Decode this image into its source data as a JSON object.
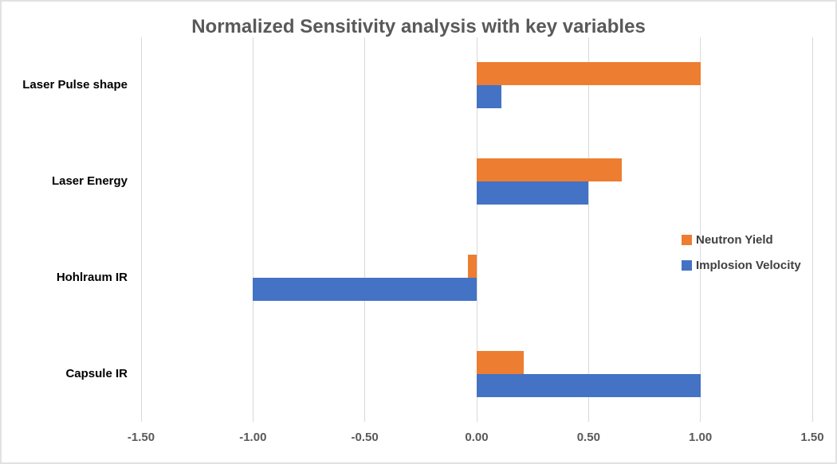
{
  "chart_data": {
    "type": "bar",
    "orientation": "horizontal",
    "title": "Normalized Sensitivity analysis with key variables",
    "categories": [
      "Laser Pulse shape",
      "Laser Energy",
      "Hohlraum IR",
      "Capsule IR"
    ],
    "series": [
      {
        "name": "Neutron Yield",
        "color": "#ED7D31",
        "values": [
          1.0,
          0.65,
          -0.04,
          0.21
        ]
      },
      {
        "name": "Implosion Velocity",
        "color": "#4472C4",
        "values": [
          0.11,
          0.5,
          -1.0,
          1.0
        ]
      }
    ],
    "xlim": [
      -1.5,
      1.5
    ],
    "x_ticks": [
      "-1.50",
      "-1.00",
      "-0.50",
      "0.00",
      "0.50",
      "1.00",
      "1.50"
    ],
    "grid": true,
    "legend_position": "right-middle",
    "xlabel": "",
    "ylabel": ""
  },
  "colors": {
    "neutron_yield": "#ED7D31",
    "implosion_velocity": "#4472C4",
    "gridline": "#d9d9d9",
    "title_text": "#595959",
    "tick_text": "#595959",
    "category_text": "#000000",
    "legend_text": "#404040",
    "frame_border": "#e2e2e2",
    "background": "#ffffff"
  }
}
